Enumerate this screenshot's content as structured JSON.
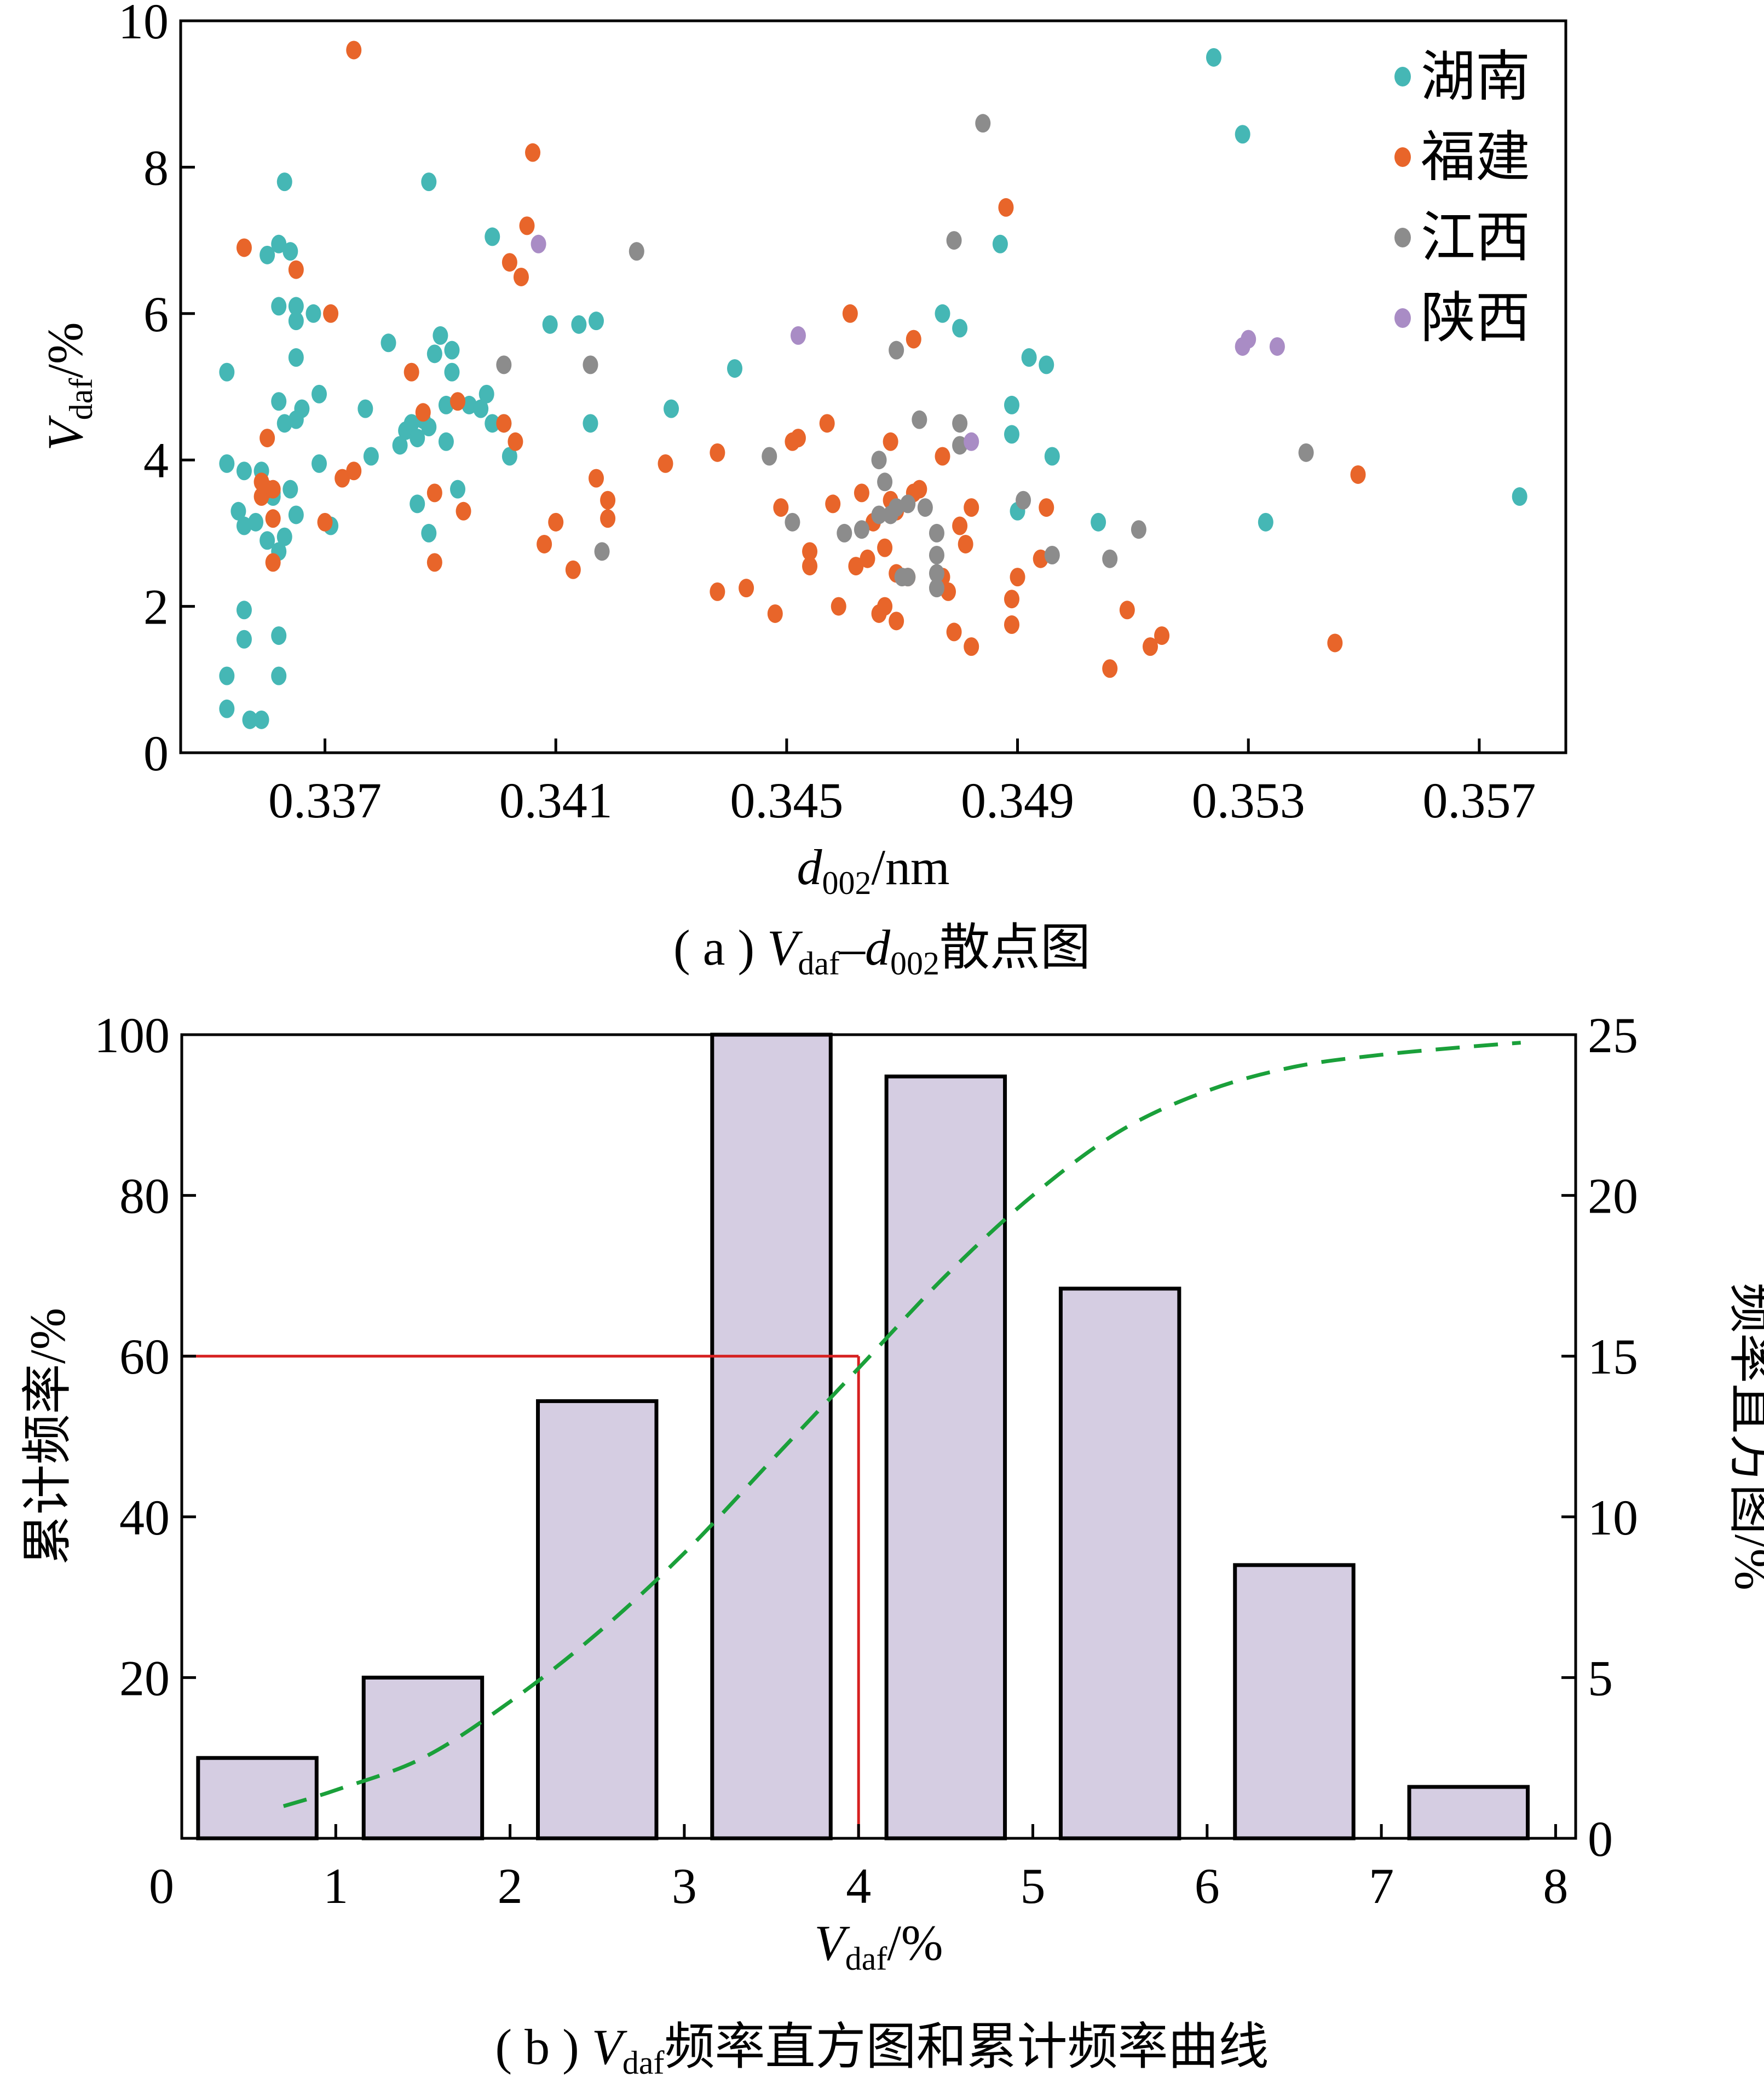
{
  "chart_data": [
    {
      "type": "scatter",
      "panel_caption": {
        "prefix": "( a ) ",
        "v": "V",
        "v_sub": "daf",
        "dash": "–",
        "d": "d",
        "d_sub": "002",
        "suffix": "散点图"
      },
      "xlabel": {
        "main": "d",
        "sub": "002",
        "unit": "/nm"
      },
      "ylabel": {
        "main": "V",
        "sub": "daf",
        "unit": "/%"
      },
      "xlim": [
        0.3345,
        0.3585
      ],
      "ylim": [
        0,
        10
      ],
      "xticks": [
        "0.337",
        "0.341",
        "0.345",
        "0.349",
        "0.353",
        "0.357"
      ],
      "xtick_values": [
        0.337,
        0.341,
        0.345,
        0.349,
        0.353,
        0.357
      ],
      "yticks": [
        "0",
        "2",
        "4",
        "6",
        "8",
        "10"
      ],
      "ytick_values": [
        0,
        2,
        4,
        6,
        8,
        10
      ],
      "legend_position": "top-right",
      "series": [
        {
          "name": "湖南",
          "color": "#45b7b5",
          "points": [
            [
              0.3353,
              5.2
            ],
            [
              0.3353,
              3.95
            ],
            [
              0.3353,
              1.05
            ],
            [
              0.3353,
              0.6
            ],
            [
              0.3355,
              3.3
            ],
            [
              0.3356,
              3.1
            ],
            [
              0.3356,
              3.85
            ],
            [
              0.3356,
              1.95
            ],
            [
              0.3356,
              1.55
            ],
            [
              0.3357,
              0.45
            ],
            [
              0.3358,
              3.15
            ],
            [
              0.3359,
              0.45
            ],
            [
              0.3359,
              3.85
            ],
            [
              0.336,
              6.8
            ],
            [
              0.336,
              2.9
            ],
            [
              0.3361,
              3.5
            ],
            [
              0.3361,
              3.55
            ],
            [
              0.3362,
              2.75
            ],
            [
              0.3362,
              6.95
            ],
            [
              0.3362,
              6.1
            ],
            [
              0.3362,
              4.8
            ],
            [
              0.3362,
              1.6
            ],
            [
              0.3362,
              1.05
            ],
            [
              0.3363,
              7.8
            ],
            [
              0.3363,
              4.5
            ],
            [
              0.3363,
              2.95
            ],
            [
              0.3364,
              6.85
            ],
            [
              0.3364,
              3.6
            ],
            [
              0.3365,
              6.1
            ],
            [
              0.3365,
              5.9
            ],
            [
              0.3365,
              5.4
            ],
            [
              0.3365,
              4.55
            ],
            [
              0.3365,
              3.25
            ],
            [
              0.3366,
              4.7
            ],
            [
              0.3368,
              6.0
            ],
            [
              0.3369,
              4.9
            ],
            [
              0.3369,
              3.95
            ],
            [
              0.3371,
              3.1
            ],
            [
              0.3377,
              4.7
            ],
            [
              0.3378,
              4.05
            ],
            [
              0.3381,
              5.6
            ],
            [
              0.3383,
              4.2
            ],
            [
              0.3384,
              4.4
            ],
            [
              0.3385,
              4.5
            ],
            [
              0.3386,
              4.3
            ],
            [
              0.3386,
              3.4
            ],
            [
              0.3387,
              4.55
            ],
            [
              0.3388,
              4.45
            ],
            [
              0.3388,
              7.8
            ],
            [
              0.3388,
              3.0
            ],
            [
              0.3389,
              5.45
            ],
            [
              0.339,
              5.7
            ],
            [
              0.3391,
              4.75
            ],
            [
              0.3391,
              4.25
            ],
            [
              0.3392,
              5.2
            ],
            [
              0.3392,
              5.5
            ],
            [
              0.3393,
              3.6
            ],
            [
              0.3395,
              4.75
            ],
            [
              0.3397,
              4.7
            ],
            [
              0.3398,
              4.9
            ],
            [
              0.3399,
              4.5
            ],
            [
              0.3399,
              7.05
            ],
            [
              0.3401,
              4.5
            ],
            [
              0.3402,
              4.05
            ],
            [
              0.3409,
              5.85
            ],
            [
              0.3414,
              5.85
            ],
            [
              0.3417,
              5.9
            ],
            [
              0.3416,
              4.5
            ],
            [
              0.343,
              4.7
            ],
            [
              0.3441,
              5.25
            ],
            [
              0.3477,
              6.0
            ],
            [
              0.348,
              5.8
            ],
            [
              0.3487,
              6.95
            ],
            [
              0.3489,
              4.75
            ],
            [
              0.3489,
              4.35
            ],
            [
              0.349,
              3.3
            ],
            [
              0.3492,
              5.4
            ],
            [
              0.3495,
              5.3
            ],
            [
              0.3496,
              4.05
            ],
            [
              0.3504,
              3.15
            ],
            [
              0.3524,
              9.5
            ],
            [
              0.3529,
              8.45
            ],
            [
              0.3533,
              3.15
            ],
            [
              0.3577,
              3.5
            ]
          ]
        },
        {
          "name": "福建",
          "color": "#e8652a",
          "points": [
            [
              0.3356,
              6.9
            ],
            [
              0.3359,
              3.7
            ],
            [
              0.3359,
              3.5
            ],
            [
              0.336,
              3.6
            ],
            [
              0.336,
              4.3
            ],
            [
              0.3361,
              3.2
            ],
            [
              0.3361,
              3.6
            ],
            [
              0.3361,
              2.6
            ],
            [
              0.3365,
              6.6
            ],
            [
              0.337,
              3.15
            ],
            [
              0.3371,
              6.0
            ],
            [
              0.3373,
              3.75
            ],
            [
              0.3375,
              3.85
            ],
            [
              0.3375,
              9.6
            ],
            [
              0.3385,
              5.2
            ],
            [
              0.3387,
              4.65
            ],
            [
              0.3389,
              3.55
            ],
            [
              0.3389,
              2.6
            ],
            [
              0.3393,
              4.8
            ],
            [
              0.3394,
              3.3
            ],
            [
              0.3401,
              4.5
            ],
            [
              0.3402,
              6.7
            ],
            [
              0.3403,
              4.25
            ],
            [
              0.3404,
              6.5
            ],
            [
              0.3405,
              7.2
            ],
            [
              0.3406,
              8.2
            ],
            [
              0.3408,
              2.85
            ],
            [
              0.341,
              3.15
            ],
            [
              0.3413,
              2.5
            ],
            [
              0.3417,
              3.75
            ],
            [
              0.3419,
              3.2
            ],
            [
              0.3419,
              3.45
            ],
            [
              0.3429,
              3.95
            ],
            [
              0.3438,
              4.1
            ],
            [
              0.3438,
              2.2
            ],
            [
              0.3443,
              2.25
            ],
            [
              0.3448,
              1.9
            ],
            [
              0.3449,
              3.35
            ],
            [
              0.3451,
              4.25
            ],
            [
              0.3452,
              4.3
            ],
            [
              0.3454,
              2.75
            ],
            [
              0.3454,
              2.55
            ],
            [
              0.3457,
              4.5
            ],
            [
              0.3458,
              3.4
            ],
            [
              0.3459,
              2.0
            ],
            [
              0.3461,
              6.0
            ],
            [
              0.3462,
              2.55
            ],
            [
              0.3463,
              3.55
            ],
            [
              0.3464,
              2.65
            ],
            [
              0.3465,
              3.15
            ],
            [
              0.3466,
              1.9
            ],
            [
              0.3467,
              2.8
            ],
            [
              0.3467,
              2.0
            ],
            [
              0.3468,
              4.25
            ],
            [
              0.3468,
              3.45
            ],
            [
              0.3469,
              3.3
            ],
            [
              0.3469,
              1.8
            ],
            [
              0.3469,
              2.45
            ],
            [
              0.3471,
              2.4
            ],
            [
              0.3472,
              3.55
            ],
            [
              0.3472,
              5.65
            ],
            [
              0.3473,
              3.6
            ],
            [
              0.3477,
              4.05
            ],
            [
              0.3477,
              2.4
            ],
            [
              0.3478,
              2.2
            ],
            [
              0.3479,
              1.65
            ],
            [
              0.348,
              3.1
            ],
            [
              0.3481,
              2.85
            ],
            [
              0.3482,
              1.45
            ],
            [
              0.3482,
              3.35
            ],
            [
              0.3488,
              7.45
            ],
            [
              0.3489,
              2.1
            ],
            [
              0.3489,
              1.75
            ],
            [
              0.349,
              2.4
            ],
            [
              0.3494,
              2.65
            ],
            [
              0.3495,
              3.35
            ],
            [
              0.3506,
              1.15
            ],
            [
              0.3509,
              1.95
            ],
            [
              0.3513,
              1.45
            ],
            [
              0.3515,
              1.6
            ],
            [
              0.3545,
              1.5
            ],
            [
              0.3549,
              3.8
            ]
          ]
        },
        {
          "name": "江西",
          "color": "#8c8c8c",
          "points": [
            [
              0.3401,
              5.3
            ],
            [
              0.3416,
              5.3
            ],
            [
              0.3418,
              2.75
            ],
            [
              0.3424,
              6.85
            ],
            [
              0.3447,
              4.05
            ],
            [
              0.3451,
              3.15
            ],
            [
              0.346,
              3.0
            ],
            [
              0.3463,
              3.05
            ],
            [
              0.3466,
              3.25
            ],
            [
              0.3466,
              4.0
            ],
            [
              0.3467,
              3.7
            ],
            [
              0.3468,
              3.25
            ],
            [
              0.3469,
              5.5
            ],
            [
              0.3469,
              3.35
            ],
            [
              0.347,
              2.4
            ],
            [
              0.3471,
              2.4
            ],
            [
              0.3471,
              3.4
            ],
            [
              0.3473,
              4.55
            ],
            [
              0.3474,
              3.35
            ],
            [
              0.3476,
              2.45
            ],
            [
              0.3476,
              2.7
            ],
            [
              0.3476,
              3.0
            ],
            [
              0.3476,
              2.25
            ],
            [
              0.3479,
              7.0
            ],
            [
              0.348,
              4.5
            ],
            [
              0.348,
              4.2
            ],
            [
              0.3484,
              8.6
            ],
            [
              0.3491,
              3.45
            ],
            [
              0.3496,
              2.7
            ],
            [
              0.3506,
              2.65
            ],
            [
              0.3511,
              3.05
            ],
            [
              0.354,
              4.1
            ]
          ]
        },
        {
          "name": "陕西",
          "color": "#a98cc5",
          "points": [
            [
              0.3407,
              6.95
            ],
            [
              0.3452,
              5.7
            ],
            [
              0.3482,
              4.25
            ],
            [
              0.3529,
              5.55
            ],
            [
              0.353,
              5.65
            ],
            [
              0.3535,
              5.55
            ]
          ]
        }
      ]
    },
    {
      "type": "bar",
      "panel_caption": {
        "prefix": "( b ) ",
        "v": "V",
        "v_sub": "daf",
        "suffix": "频率直方图和累计频率曲线"
      },
      "xlabel": {
        "main": "V",
        "sub": "daf",
        "unit": "/%"
      },
      "ylabel_left": "累计频率/%",
      "ylabel_right": "频率直方图/%",
      "xlim": [
        0,
        8
      ],
      "xticks": [
        "0",
        "1",
        "2",
        "3",
        "4",
        "5",
        "6",
        "7",
        "8"
      ],
      "xtick_values": [
        0,
        1,
        2,
        3,
        4,
        5,
        6,
        7,
        8
      ],
      "ylim_left": [
        0,
        100
      ],
      "yticks_left": [
        "20",
        "40",
        "60",
        "80",
        "100"
      ],
      "ytick_values_left": [
        20,
        40,
        60,
        80,
        100
      ],
      "ylim_right": [
        0,
        25
      ],
      "yticks_right": [
        "0",
        "5",
        "10",
        "15",
        "20",
        "25"
      ],
      "ytick_values_right": [
        0,
        5,
        10,
        15,
        20,
        25
      ],
      "bar_color": "#d5cde2",
      "bars": [
        {
          "center": 0.55,
          "width": 0.68,
          "value": 2.5
        },
        {
          "center": 1.5,
          "width": 0.68,
          "value": 5.0
        },
        {
          "center": 2.5,
          "width": 0.68,
          "value": 13.6
        },
        {
          "center": 3.5,
          "width": 0.68,
          "value": 25.0
        },
        {
          "center": 4.5,
          "width": 0.68,
          "value": 23.7
        },
        {
          "center": 5.5,
          "width": 0.68,
          "value": 17.1
        },
        {
          "center": 6.5,
          "width": 0.68,
          "value": 8.5
        },
        {
          "center": 7.5,
          "width": 0.68,
          "value": 1.6
        }
      ],
      "cumulative_color": "#1aa03a",
      "cumulative_curve": [
        [
          0.7,
          4
        ],
        [
          1.0,
          6
        ],
        [
          1.5,
          10
        ],
        [
          2.0,
          17
        ],
        [
          2.5,
          25.5
        ],
        [
          3.0,
          35.5
        ],
        [
          3.5,
          47
        ],
        [
          4.0,
          58.5
        ],
        [
          4.5,
          70
        ],
        [
          5.0,
          80
        ],
        [
          5.5,
          88
        ],
        [
          6.0,
          93
        ],
        [
          6.5,
          96
        ],
        [
          7.0,
          97.5
        ],
        [
          7.5,
          98.5
        ],
        [
          7.8,
          99
        ]
      ],
      "reference_line": {
        "color": "#d62020",
        "x": 4.0,
        "y": 60
      }
    }
  ]
}
